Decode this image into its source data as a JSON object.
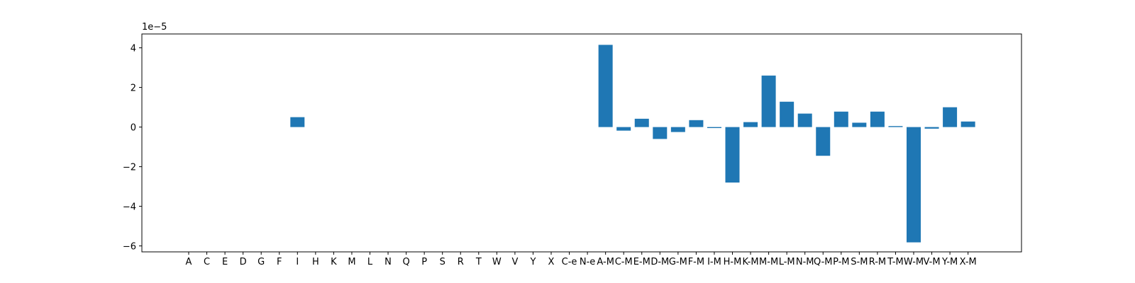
{
  "chart_data": {
    "type": "bar",
    "title": "",
    "xlabel": "",
    "ylabel": "",
    "y_scale_label": "1e−5",
    "y_scale": 1e-05,
    "ylim": [
      -6.3,
      4.7
    ],
    "yticks": [
      -6,
      -4,
      -2,
      0,
      2,
      4
    ],
    "ytick_labels": [
      "−6",
      "−4",
      "−2",
      "0",
      "2",
      "4"
    ],
    "grid": false,
    "legend": "none",
    "bar_color": "#1f77b4",
    "categories": [
      "A",
      "C",
      "E",
      "D",
      "G",
      "F",
      "I",
      "H",
      "K",
      "M",
      "L",
      "N",
      "Q",
      "P",
      "S",
      "R",
      "T",
      "W",
      "V",
      "Y",
      "X",
      "C-e",
      "N-e",
      "A-M",
      "C-M",
      "E-M",
      "D-M",
      "G-M",
      "F-M",
      "I-M",
      "H-M",
      "K-M",
      "M-M",
      "L-M",
      "N-M",
      "Q-M",
      "P-M",
      "S-M",
      "R-M",
      "T-M",
      "W-M",
      "V-M",
      "Y-M",
      "X-M"
    ],
    "values": [
      0,
      0,
      0,
      0,
      0,
      0,
      0.5,
      0,
      0,
      0,
      0,
      0,
      0,
      0,
      0,
      0,
      0,
      0,
      0,
      0,
      0,
      0,
      0,
      4.15,
      -0.18,
      0.42,
      -0.6,
      -0.25,
      0.35,
      -0.05,
      -2.8,
      0.25,
      2.6,
      1.28,
      0.68,
      -1.45,
      0.78,
      0.22,
      0.78,
      0.05,
      -5.82,
      -0.08,
      1.0,
      0.28
    ]
  }
}
